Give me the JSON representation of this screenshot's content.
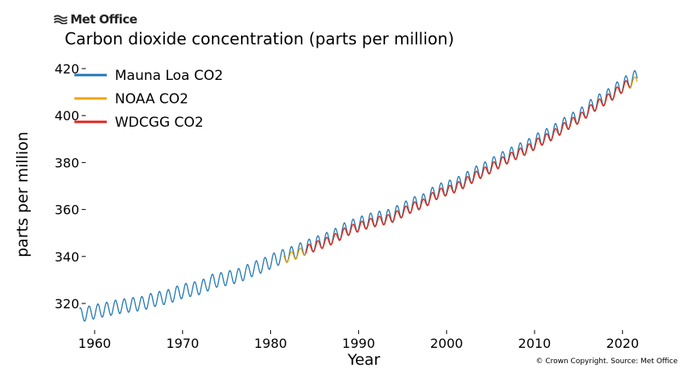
{
  "brand": {
    "logo_text": "Met Office",
    "logo_icon": "met-office-waves-icon"
  },
  "copyright": "© Crown Copyright. Source: Met Office",
  "chart_data": {
    "type": "line",
    "title": "Carbon dioxide concentration (parts per million)",
    "xlabel": "Year",
    "ylabel": "parts per million",
    "xlim": [
      1957.5,
      2022.5
    ],
    "ylim": [
      310,
      422
    ],
    "xticks": [
      1960,
      1970,
      1980,
      1990,
      2000,
      2010,
      2020
    ],
    "yticks": [
      320,
      340,
      360,
      380,
      400,
      420
    ],
    "grid": false,
    "legend_position": "top-left",
    "series": [
      {
        "name": "Mauna Loa CO2",
        "color": "#1f77b4",
        "start": 1958.3,
        "end": 2021.7,
        "seasonal_amplitude": 3.0,
        "years": [
          1958,
          1959,
          1960,
          1961,
          1962,
          1963,
          1964,
          1965,
          1966,
          1967,
          1968,
          1969,
          1970,
          1971,
          1972,
          1973,
          1974,
          1975,
          1976,
          1977,
          1978,
          1979,
          1980,
          1981,
          1982,
          1983,
          1984,
          1985,
          1986,
          1987,
          1988,
          1989,
          1990,
          1991,
          1992,
          1993,
          1994,
          1995,
          1996,
          1997,
          1998,
          1999,
          2000,
          2001,
          2002,
          2003,
          2004,
          2005,
          2006,
          2007,
          2008,
          2009,
          2010,
          2011,
          2012,
          2013,
          2014,
          2015,
          2016,
          2017,
          2018,
          2019,
          2020,
          2021
        ],
        "annual_mean": [
          315.2,
          316.0,
          316.9,
          317.6,
          318.5,
          319.0,
          319.6,
          320.0,
          321.4,
          322.2,
          323.0,
          324.6,
          325.7,
          326.3,
          327.5,
          329.7,
          330.2,
          331.1,
          332.0,
          333.8,
          335.4,
          336.8,
          338.7,
          340.1,
          341.4,
          343.0,
          344.6,
          346.0,
          347.4,
          349.2,
          351.6,
          353.1,
          354.4,
          355.6,
          356.4,
          357.1,
          358.9,
          360.9,
          362.7,
          363.8,
          366.8,
          368.5,
          369.7,
          371.3,
          373.5,
          375.8,
          377.5,
          379.8,
          381.9,
          383.8,
          385.6,
          387.4,
          389.9,
          391.7,
          393.9,
          396.5,
          398.7,
          400.9,
          404.2,
          406.5,
          408.7,
          411.7,
          414.2,
          416.4
        ]
      },
      {
        "name": "NOAA CO2",
        "color": "#f0a30a",
        "start": 1981.5,
        "end": 2021.7,
        "seasonal_amplitude": 2.0,
        "years": [
          1981,
          1982,
          1983,
          1984,
          1985,
          1986,
          1987,
          1988,
          1989,
          1990,
          1991,
          1992,
          1993,
          1994,
          1995,
          1996,
          1997,
          1998,
          1999,
          2000,
          2001,
          2002,
          2003,
          2004,
          2005,
          2006,
          2007,
          2008,
          2009,
          2010,
          2011,
          2012,
          2013,
          2014,
          2015,
          2016,
          2017,
          2018,
          2019,
          2020,
          2021
        ],
        "annual_mean": [
          339.0,
          340.2,
          341.8,
          343.4,
          344.9,
          346.3,
          348.0,
          350.4,
          351.9,
          353.2,
          354.4,
          355.2,
          355.9,
          357.7,
          359.7,
          361.5,
          362.6,
          365.6,
          367.3,
          368.5,
          370.1,
          372.3,
          374.6,
          376.3,
          378.6,
          380.7,
          382.6,
          384.4,
          386.2,
          388.7,
          390.5,
          392.7,
          395.3,
          397.5,
          399.7,
          403.0,
          405.3,
          407.5,
          410.5,
          413.0,
          414.7
        ]
      },
      {
        "name": "WDCGG CO2",
        "color": "#e0231e",
        "start": 1984.0,
        "end": 2020.9,
        "seasonal_amplitude": 2.0,
        "years": [
          1984,
          1985,
          1986,
          1987,
          1988,
          1989,
          1990,
          1991,
          1992,
          1993,
          1994,
          1995,
          1996,
          1997,
          1998,
          1999,
          2000,
          2001,
          2002,
          2003,
          2004,
          2005,
          2006,
          2007,
          2008,
          2009,
          2010,
          2011,
          2012,
          2013,
          2014,
          2015,
          2016,
          2017,
          2018,
          2019,
          2020
        ],
        "annual_mean": [
          343.4,
          344.9,
          346.3,
          348.0,
          350.4,
          351.9,
          353.2,
          354.4,
          355.2,
          355.9,
          357.7,
          359.7,
          361.5,
          362.6,
          365.6,
          367.3,
          368.5,
          370.1,
          372.3,
          374.6,
          376.3,
          378.6,
          380.7,
          382.6,
          384.4,
          386.2,
          388.7,
          390.5,
          392.7,
          395.3,
          397.5,
          399.7,
          403.0,
          405.3,
          407.5,
          410.5,
          413.2
        ]
      }
    ]
  }
}
